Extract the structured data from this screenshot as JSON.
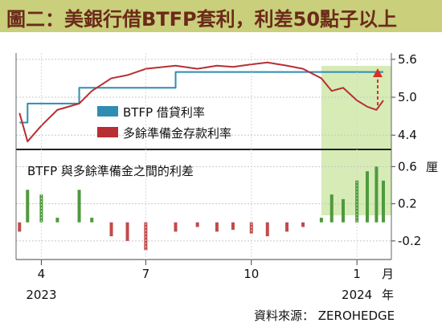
{
  "title": "圖二：美銀行借BTFP套利，利差50點子以上",
  "source": "資料來源： ZEROHEDGE",
  "colors": {
    "btfp": "#2f8db3",
    "deposit": "#b72f32",
    "spread_pos": "#4e9a3d",
    "spread_neg": "#c24a4a",
    "highlight": "#d6ebb6",
    "title_bg": "#c9cf7a",
    "title_fg": "#6b2a1a",
    "arrow": "#d73027"
  },
  "chart_data": [
    {
      "type": "line",
      "legend_position": "top-center",
      "series": [
        {
          "name": "BTFP 借貸利率",
          "x": [
            "2023-03-13",
            "2023-03-20",
            "2023-04-03",
            "2023-05-04",
            "2023-07-27",
            "2023-12-31",
            "2024-01-24"
          ],
          "values": [
            4.6,
            4.9,
            4.9,
            5.15,
            5.4,
            5.4,
            5.4
          ]
        },
        {
          "name": "多餘準備金存款利率",
          "x": [
            "2023-03-13",
            "2023-03-20",
            "2023-04-01",
            "2023-04-15",
            "2023-05-04",
            "2023-05-15",
            "2023-06-01",
            "2023-06-15",
            "2023-07-01",
            "2023-07-27",
            "2023-08-15",
            "2023-09-01",
            "2023-09-15",
            "2023-10-01",
            "2023-10-15",
            "2023-11-01",
            "2023-11-15",
            "2023-12-01",
            "2023-12-10",
            "2023-12-20",
            "2024-01-01",
            "2024-01-10",
            "2024-01-18",
            "2024-01-24"
          ],
          "values": [
            4.75,
            4.3,
            4.55,
            4.8,
            4.9,
            5.1,
            5.3,
            5.35,
            5.45,
            5.5,
            5.45,
            5.5,
            5.48,
            5.52,
            5.55,
            5.5,
            5.45,
            5.3,
            5.1,
            5.15,
            4.95,
            4.85,
            4.8,
            4.95
          ]
        }
      ],
      "yticks": [
        4.4,
        5.0,
        5.6
      ],
      "ylim": [
        4.25,
        5.7
      ]
    },
    {
      "type": "bar",
      "title": "BTFP 與多餘準備金之間的利差",
      "ylabel": "厘",
      "yticks": [
        -0.2,
        0.2,
        0.6
      ],
      "ylim": [
        -0.4,
        0.75
      ],
      "x": [
        "2023-03-13",
        "2023-03-20",
        "2023-04-01",
        "2023-04-15",
        "2023-05-04",
        "2023-05-15",
        "2023-06-01",
        "2023-06-15",
        "2023-07-01",
        "2023-07-27",
        "2023-08-15",
        "2023-09-01",
        "2023-09-15",
        "2023-10-01",
        "2023-10-15",
        "2023-11-01",
        "2023-11-15",
        "2023-12-01",
        "2023-12-10",
        "2023-12-20",
        "2024-01-01",
        "2024-01-10",
        "2024-01-18",
        "2024-01-24"
      ],
      "values": [
        -0.1,
        0.35,
        0.3,
        0.05,
        0.35,
        0.05,
        -0.15,
        -0.2,
        -0.3,
        -0.1,
        -0.05,
        -0.1,
        -0.08,
        -0.12,
        -0.15,
        -0.1,
        -0.05,
        0.05,
        0.3,
        0.25,
        0.45,
        0.55,
        0.6,
        0.45
      ]
    }
  ],
  "x_axis": {
    "ticks": [
      {
        "label": "4",
        "date": "2023-04-01"
      },
      {
        "label": "7",
        "date": "2023-07-01"
      },
      {
        "label": "10",
        "date": "2023-10-01"
      },
      {
        "label": "1",
        "date": "2024-01-01"
      }
    ],
    "month_unit": "月",
    "years": [
      {
        "label": "2023",
        "date": "2023-04-01"
      },
      {
        "label": "2024",
        "date": "2024-01-01"
      }
    ],
    "year_unit": "年",
    "range": [
      "2023-03-10",
      "2024-01-31"
    ],
    "highlight_start": "2023-12-01"
  }
}
